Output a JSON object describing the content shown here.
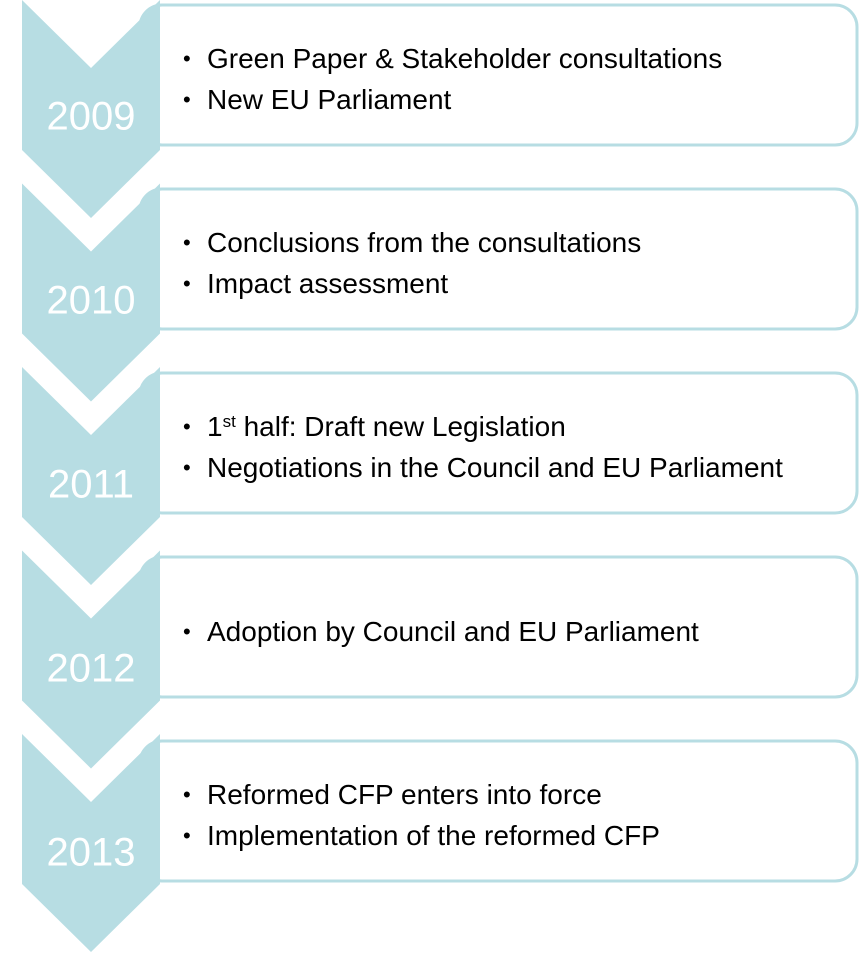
{
  "items": [
    {
      "year": "2009",
      "bullets": [
        "Green Paper & Stakeholder consultations",
        "New EU Parliament"
      ]
    },
    {
      "year": "2010",
      "bullets": [
        "Conclusions from the consultations",
        "Impact assessment"
      ]
    },
    {
      "year": "2011",
      "bullets": [
        {
          "text": "1",
          "sup": "st",
          "rest": " half: Draft new Legislation"
        },
        "Negotiations in the Council and EU Parliament"
      ]
    },
    {
      "year": "2012",
      "bullets": [
        "Adoption by Council and EU Parliament"
      ]
    },
    {
      "year": "2013",
      "bullets": [
        "Reformed CFP enters into force",
        "Implementation of the reformed CFP"
      ]
    }
  ]
}
